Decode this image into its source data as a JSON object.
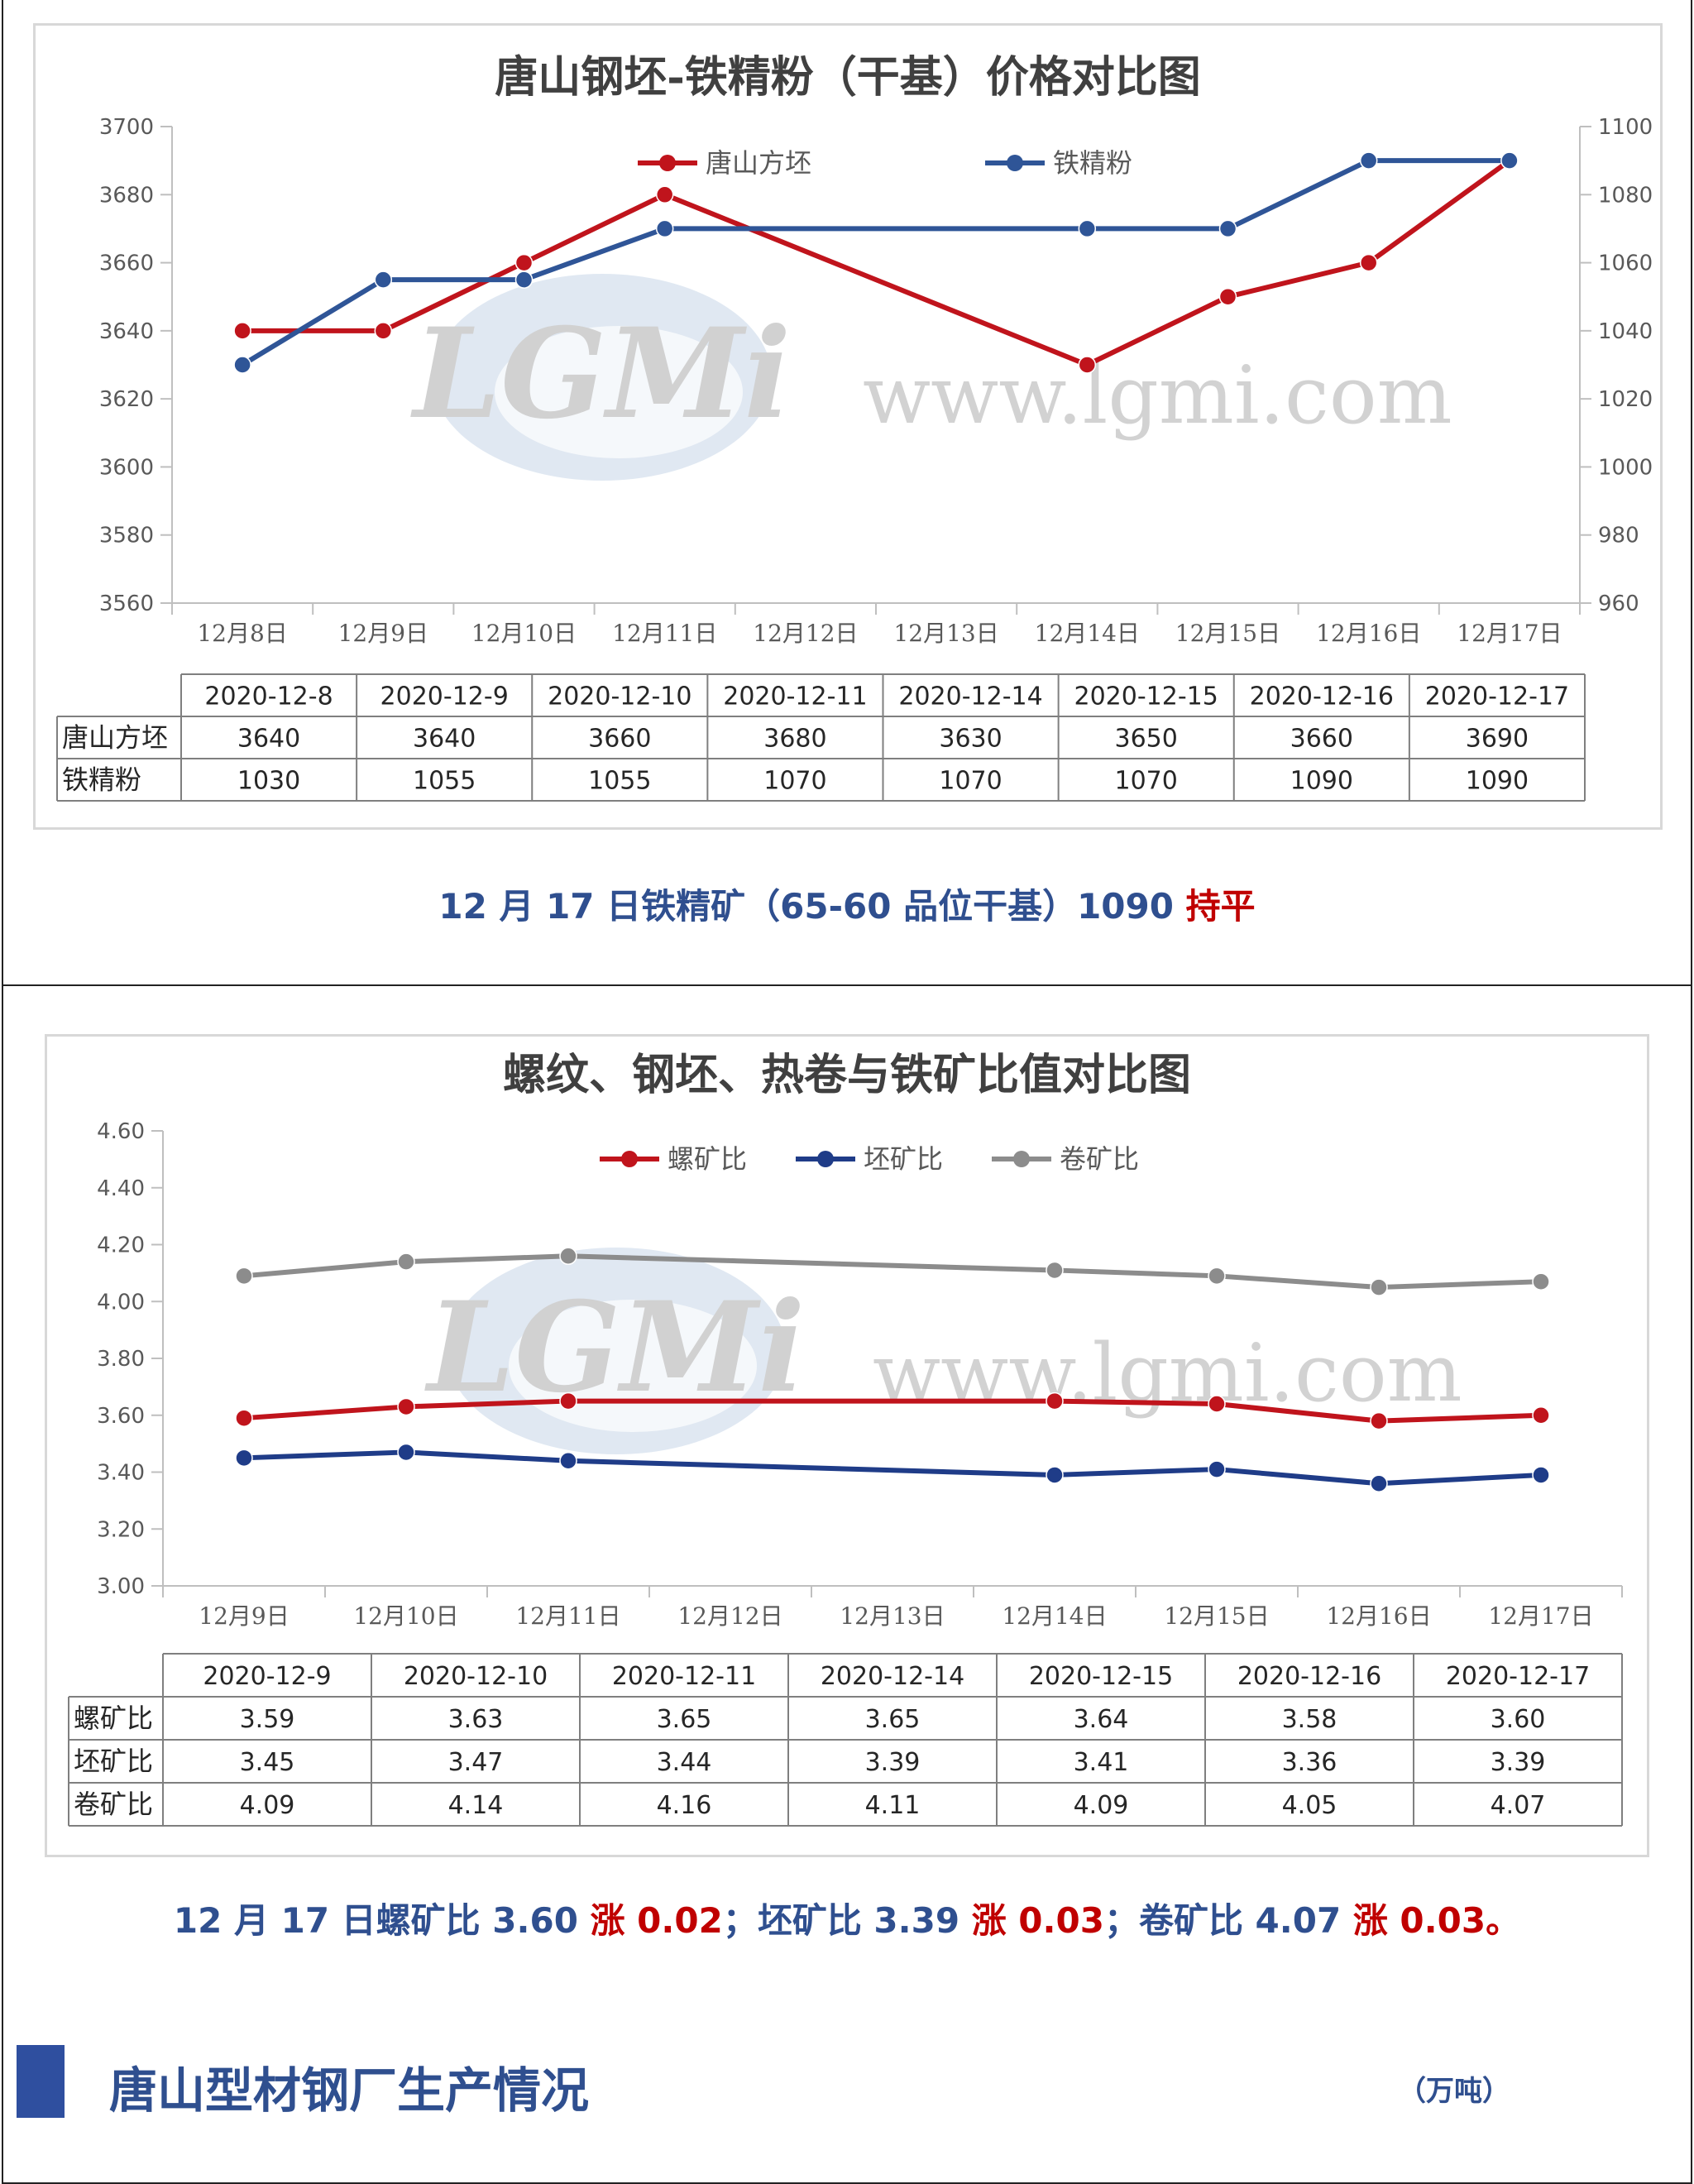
{
  "chart_data": [
    {
      "type": "line",
      "title": "唐山钢坯-铁精粉（干基）价格对比图",
      "categories": [
        "12月8日",
        "12月9日",
        "12月10日",
        "12月11日",
        "12月12日",
        "12月13日",
        "12月14日",
        "12月15日",
        "12月16日",
        "12月17日"
      ],
      "y_left": {
        "min": 3560,
        "max": 3700,
        "step": 20
      },
      "y_right": {
        "min": 960,
        "max": 1100,
        "step": 20
      },
      "grid": false,
      "legend": "top",
      "watermark": "www.lgmi.com",
      "series": [
        {
          "name": "唐山方坯",
          "axis": "left",
          "color": "#c0141c",
          "points": [
            [
              0,
              3640
            ],
            [
              1,
              3640
            ],
            [
              2,
              3660
            ],
            [
              3,
              3680
            ],
            [
              6,
              3630
            ],
            [
              7,
              3650
            ],
            [
              8,
              3660
            ],
            [
              9,
              3690
            ]
          ]
        },
        {
          "name": "铁精粉",
          "axis": "right",
          "color": "#2f5597",
          "points": [
            [
              0,
              1030
            ],
            [
              1,
              1055
            ],
            [
              2,
              1055
            ],
            [
              3,
              1070
            ],
            [
              6,
              1070
            ],
            [
              7,
              1070
            ],
            [
              8,
              1090
            ],
            [
              9,
              1090
            ]
          ]
        }
      ],
      "table": {
        "headers": [
          "2020-12-8",
          "2020-12-9",
          "2020-12-10",
          "2020-12-11",
          "2020-12-14",
          "2020-12-15",
          "2020-12-16",
          "2020-12-17"
        ],
        "rows": [
          {
            "label": "唐山方坯",
            "values": [
              "3640",
              "3640",
              "3660",
              "3680",
              "3630",
              "3650",
              "3660",
              "3690"
            ]
          },
          {
            "label": "铁精粉",
            "values": [
              "1030",
              "1055",
              "1055",
              "1070",
              "1070",
              "1070",
              "1090",
              "1090"
            ]
          }
        ]
      }
    },
    {
      "type": "line",
      "title": "螺纹、钢坯、热卷与铁矿比值对比图",
      "categories": [
        "12月9日",
        "12月10日",
        "12月11日",
        "12月12日",
        "12月13日",
        "12月14日",
        "12月15日",
        "12月16日",
        "12月17日"
      ],
      "y": {
        "min": 3.0,
        "max": 4.6,
        "step": 0.2
      },
      "grid": false,
      "legend": "top",
      "watermark": "www.lgmi.com",
      "series": [
        {
          "name": "螺矿比",
          "color": "#c0141c",
          "points": [
            [
              0,
              3.59
            ],
            [
              1,
              3.63
            ],
            [
              2,
              3.65
            ],
            [
              5,
              3.65
            ],
            [
              6,
              3.64
            ],
            [
              7,
              3.58
            ],
            [
              8,
              3.6
            ]
          ]
        },
        {
          "name": "坯矿比",
          "color": "#1f3c88",
          "points": [
            [
              0,
              3.45
            ],
            [
              1,
              3.47
            ],
            [
              2,
              3.44
            ],
            [
              5,
              3.39
            ],
            [
              6,
              3.41
            ],
            [
              7,
              3.36
            ],
            [
              8,
              3.39
            ]
          ]
        },
        {
          "name": "卷矿比",
          "color": "#8c8c8c",
          "points": [
            [
              0,
              4.09
            ],
            [
              1,
              4.14
            ],
            [
              2,
              4.16
            ],
            [
              5,
              4.11
            ],
            [
              6,
              4.09
            ],
            [
              7,
              4.05
            ],
            [
              8,
              4.07
            ]
          ]
        }
      ],
      "table": {
        "headers": [
          "2020-12-9",
          "2020-12-10",
          "2020-12-11",
          "2020-12-14",
          "2020-12-15",
          "2020-12-16",
          "2020-12-17"
        ],
        "rows": [
          {
            "label": "螺矿比",
            "values": [
              "3.59",
              "3.63",
              "3.65",
              "3.65",
              "3.64",
              "3.58",
              "3.60"
            ]
          },
          {
            "label": "坯矿比",
            "values": [
              "3.45",
              "3.47",
              "3.44",
              "3.39",
              "3.41",
              "3.36",
              "3.39"
            ]
          },
          {
            "label": "卷矿比",
            "values": [
              "4.09",
              "4.14",
              "4.16",
              "4.11",
              "4.09",
              "4.05",
              "4.07"
            ]
          }
        ]
      }
    }
  ],
  "notes": {
    "note1": {
      "prefix": "12 月 17 日铁精矿（65-60 品位干基）1090 ",
      "status": "持平"
    },
    "note2": {
      "p1": "12 月 17 日螺矿比 3.60 ",
      "r1": "涨 0.02",
      "p2": "；坯矿比 3.39 ",
      "r2": "涨 0.03",
      "p3": "；卷矿比 4.07 ",
      "r3": "涨 0.03",
      "p4": "。"
    }
  },
  "section": {
    "title": "唐山型材钢厂生产情况",
    "unit": "（万吨）"
  },
  "logo_text": "LGMi"
}
